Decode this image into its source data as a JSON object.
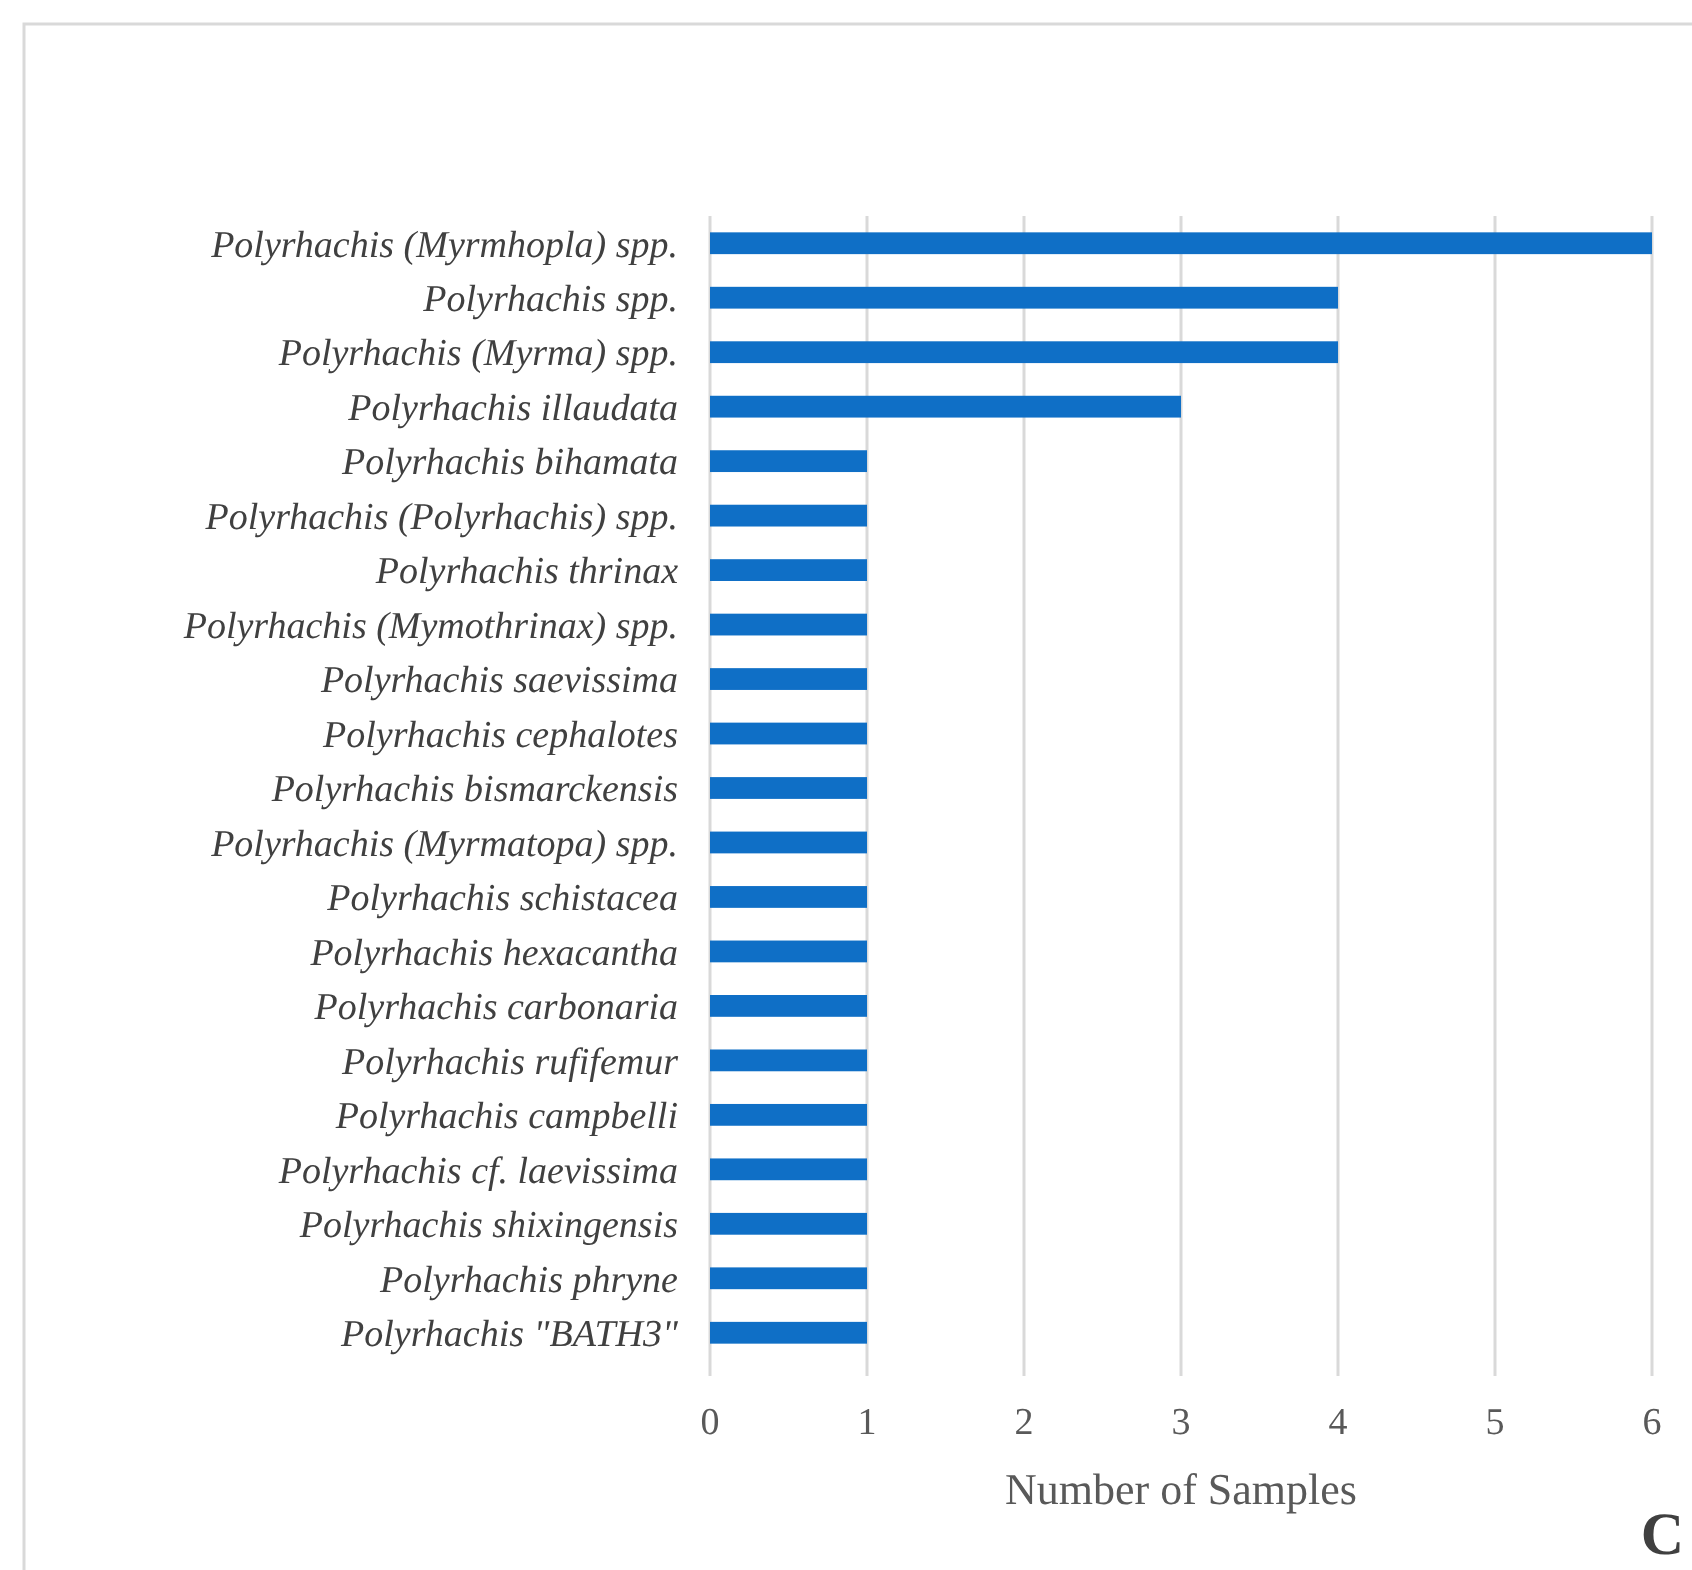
{
  "chart_data": {
    "type": "bar",
    "orientation": "horizontal",
    "categories": [
      "Polyrhachis (Myrmhopla) spp.",
      "Polyrhachis spp.",
      "Polyrhachis (Myrma) spp.",
      "Polyrhachis illaudata",
      "Polyrhachis bihamata",
      "Polyrhachis (Polyrhachis) spp.",
      "Polyrhachis thrinax",
      "Polyrhachis (Mymothrinax) spp.",
      "Polyrhachis saevissima",
      "Polyrhachis cephalotes",
      "Polyrhachis bismarckensis",
      "Polyrhachis (Myrmatopa) spp.",
      "Polyrhachis schistacea",
      "Polyrhachis hexacantha",
      "Polyrhachis carbonaria",
      "Polyrhachis rufifemur",
      "Polyrhachis campbelli",
      "Polyrhachis cf. laevissima",
      "Polyrhachis shixingensis",
      "Polyrhachis phryne",
      "Polyrhachis \"BATH3\""
    ],
    "values": [
      6,
      4,
      4,
      3,
      1,
      1,
      1,
      1,
      1,
      1,
      1,
      1,
      1,
      1,
      1,
      1,
      1,
      1,
      1,
      1,
      1
    ],
    "color": "#0f6fc6",
    "xlabel": "Number of Samples",
    "xlim": [
      0,
      6
    ],
    "xticks": [
      0,
      1,
      2,
      3,
      4,
      5,
      6
    ],
    "grid": "x",
    "annotations": [
      "C"
    ]
  }
}
